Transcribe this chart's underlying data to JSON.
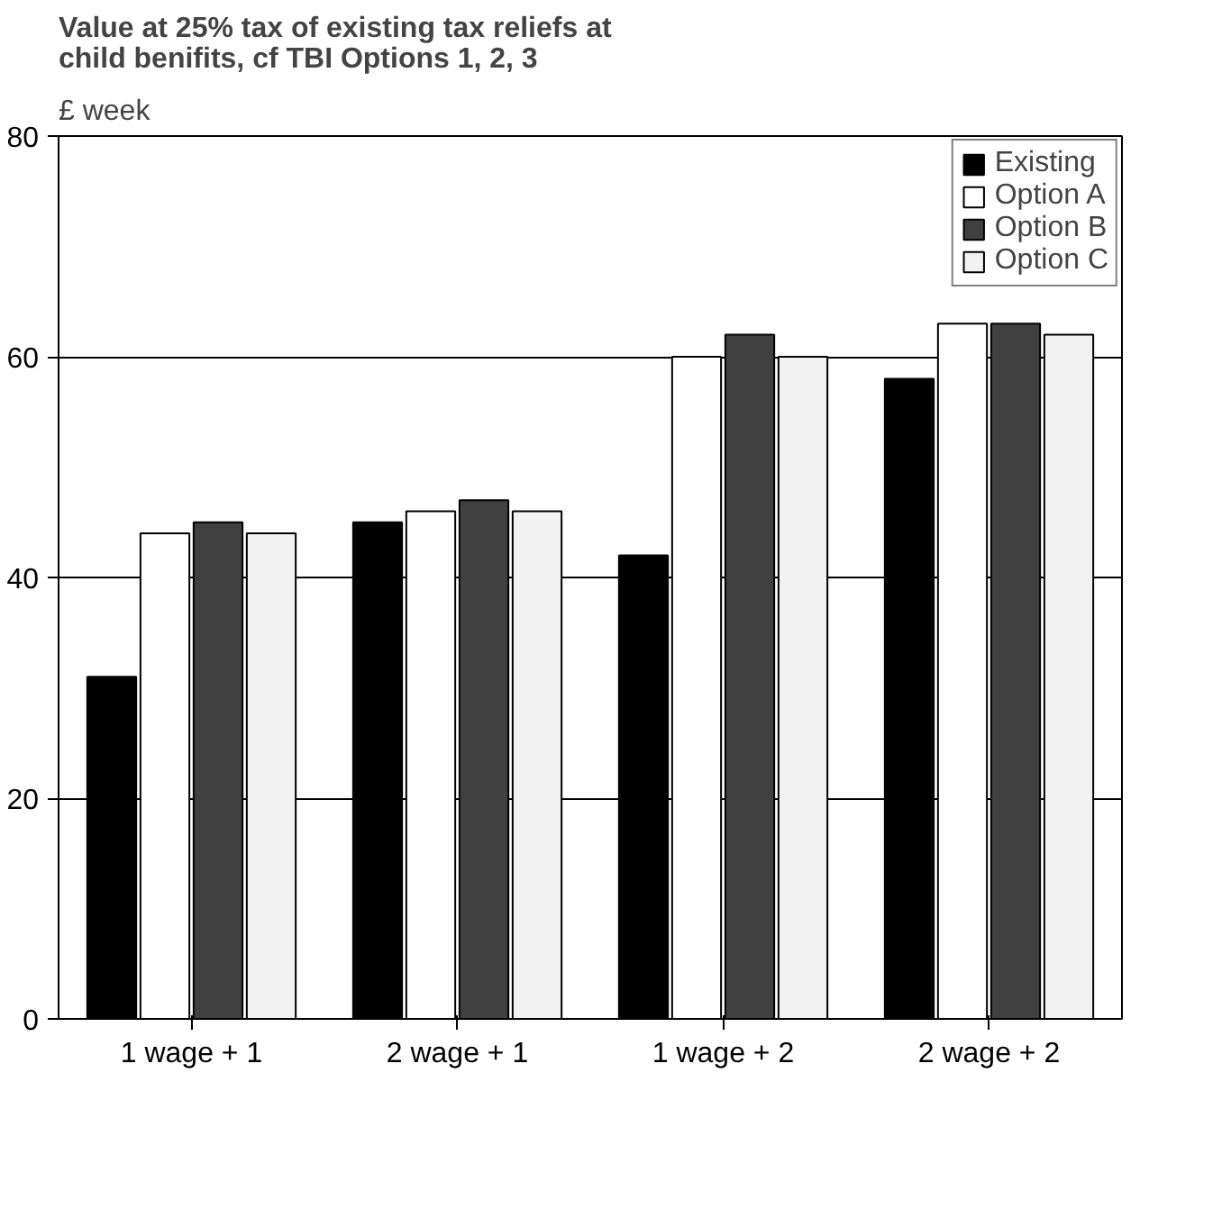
{
  "chart_data": {
    "type": "bar",
    "title": "Value at 25% tax of existing tax reliefs at child benifits, cf TBI Options 1, 2, 3",
    "ylabel": "£ week",
    "categories": [
      "1 wage + 1",
      "2 wage + 1",
      "1 wage + 2",
      "2 wage + 2"
    ],
    "series": [
      {
        "name": "Existing",
        "color": "#000000",
        "values": [
          31,
          45,
          42,
          58
        ]
      },
      {
        "name": "Option A",
        "color": "#ffffff",
        "values": [
          44,
          46,
          60,
          63
        ]
      },
      {
        "name": "Option B",
        "color": "#404040",
        "values": [
          45,
          47,
          62,
          63
        ]
      },
      {
        "name": "Option C",
        "color": "#f2f2f2",
        "values": [
          44,
          46,
          60,
          62
        ]
      }
    ],
    "ylim": [
      0,
      80
    ],
    "yticks": [
      0,
      20,
      40,
      60,
      80
    ],
    "grid": "y",
    "legend": "top right"
  }
}
